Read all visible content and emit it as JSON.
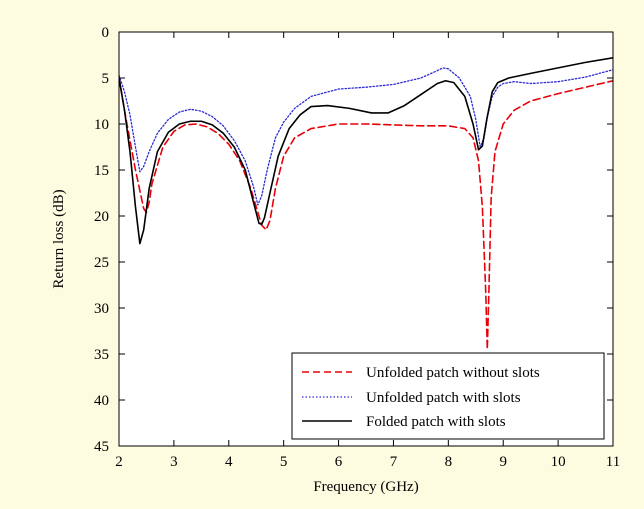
{
  "chart_data": {
    "type": "line",
    "xlabel": "Frequency (GHz)",
    "ylabel": "Return loss (dB)",
    "xlim": [
      2,
      11
    ],
    "ylim": [
      0,
      45
    ],
    "y_reversed": true,
    "xticks": [
      "2",
      "3",
      "4",
      "5",
      "6",
      "7",
      "8",
      "9",
      "10",
      "11"
    ],
    "yticks": [
      "0",
      "5",
      "10",
      "15",
      "20",
      "25",
      "30",
      "35",
      "40",
      "45"
    ],
    "grid": false,
    "legend_position": "bottom-right",
    "colors": {
      "background": "#fdfbe0",
      "plot_area": "#ffffff"
    },
    "series": [
      {
        "name": "Unfolded patch without slots",
        "color": "#e8000b",
        "dash": "dashed",
        "x": [
          2.0,
          2.1,
          2.2,
          2.3,
          2.4,
          2.45,
          2.5,
          2.55,
          2.6,
          2.8,
          3.0,
          3.2,
          3.4,
          3.6,
          3.8,
          4.0,
          4.2,
          4.4,
          4.5,
          4.6,
          4.68,
          4.75,
          4.85,
          5.0,
          5.2,
          5.5,
          6.0,
          6.5,
          7.0,
          7.5,
          8.0,
          8.3,
          8.45,
          8.55,
          8.62,
          8.68,
          8.71,
          8.74,
          8.78,
          8.85,
          9.0,
          9.2,
          9.5,
          10.0,
          10.5,
          11.0
        ],
        "values": [
          4.9,
          8.5,
          11.8,
          15.0,
          17.8,
          19.2,
          19.6,
          18.5,
          16.5,
          12.5,
          10.8,
          10.1,
          10.0,
          10.3,
          11.0,
          12.2,
          14.0,
          17.0,
          19.0,
          21.0,
          21.5,
          20.5,
          17.0,
          13.5,
          11.5,
          10.5,
          10.0,
          10.0,
          10.1,
          10.2,
          10.2,
          10.5,
          11.5,
          14.0,
          19.0,
          28.0,
          34.5,
          28.0,
          18.0,
          13.0,
          10.0,
          8.5,
          7.5,
          6.7,
          6.0,
          5.3
        ]
      },
      {
        "name": "Unfolded patch with slots",
        "color": "#2b2bd6",
        "dash": "dotted",
        "x": [
          2.0,
          2.1,
          2.2,
          2.3,
          2.38,
          2.45,
          2.55,
          2.7,
          2.9,
          3.1,
          3.3,
          3.5,
          3.7,
          3.9,
          4.1,
          4.3,
          4.45,
          4.53,
          4.6,
          4.7,
          4.85,
          5.0,
          5.2,
          5.5,
          6.0,
          6.5,
          7.0,
          7.5,
          7.8,
          7.9,
          8.0,
          8.2,
          8.4,
          8.5,
          8.58,
          8.65,
          8.72,
          8.8,
          8.9,
          9.0,
          9.2,
          9.5,
          10.0,
          10.5,
          11.0
        ],
        "values": [
          4.7,
          6.5,
          9.0,
          12.5,
          15.2,
          14.6,
          13.0,
          11.0,
          9.5,
          8.7,
          8.4,
          8.6,
          9.2,
          10.2,
          11.8,
          14.0,
          16.8,
          18.8,
          17.8,
          15.0,
          11.5,
          9.8,
          8.3,
          7.0,
          6.2,
          6.0,
          5.7,
          5.0,
          4.2,
          3.9,
          4.0,
          5.0,
          7.0,
          9.5,
          12.5,
          11.5,
          9.0,
          7.0,
          6.0,
          5.6,
          5.4,
          5.6,
          5.4,
          4.9,
          4.1
        ]
      },
      {
        "name": "Folded patch with slots",
        "color": "#000000",
        "dash": "solid",
        "x": [
          2.0,
          2.1,
          2.2,
          2.3,
          2.38,
          2.45,
          2.55,
          2.7,
          2.9,
          3.1,
          3.3,
          3.5,
          3.7,
          3.9,
          4.1,
          4.3,
          4.45,
          4.55,
          4.6,
          4.65,
          4.75,
          4.9,
          5.1,
          5.3,
          5.5,
          5.8,
          6.2,
          6.6,
          6.9,
          7.2,
          7.5,
          7.8,
          7.95,
          8.1,
          8.3,
          8.45,
          8.55,
          8.62,
          8.7,
          8.8,
          8.9,
          9.1,
          9.5,
          10.0,
          10.5,
          11.0
        ],
        "values": [
          5.0,
          8.5,
          13.0,
          19.0,
          23.0,
          21.5,
          17.0,
          13.0,
          10.9,
          10.0,
          9.7,
          9.7,
          10.1,
          11.0,
          12.5,
          15.0,
          18.5,
          20.8,
          20.9,
          20.2,
          17.5,
          13.5,
          10.5,
          9.0,
          8.1,
          8.0,
          8.3,
          8.8,
          8.8,
          8.0,
          6.8,
          5.6,
          5.3,
          5.5,
          7.0,
          10.0,
          12.8,
          12.4,
          9.5,
          6.5,
          5.5,
          5.0,
          4.5,
          3.9,
          3.3,
          2.8
        ]
      }
    ]
  }
}
